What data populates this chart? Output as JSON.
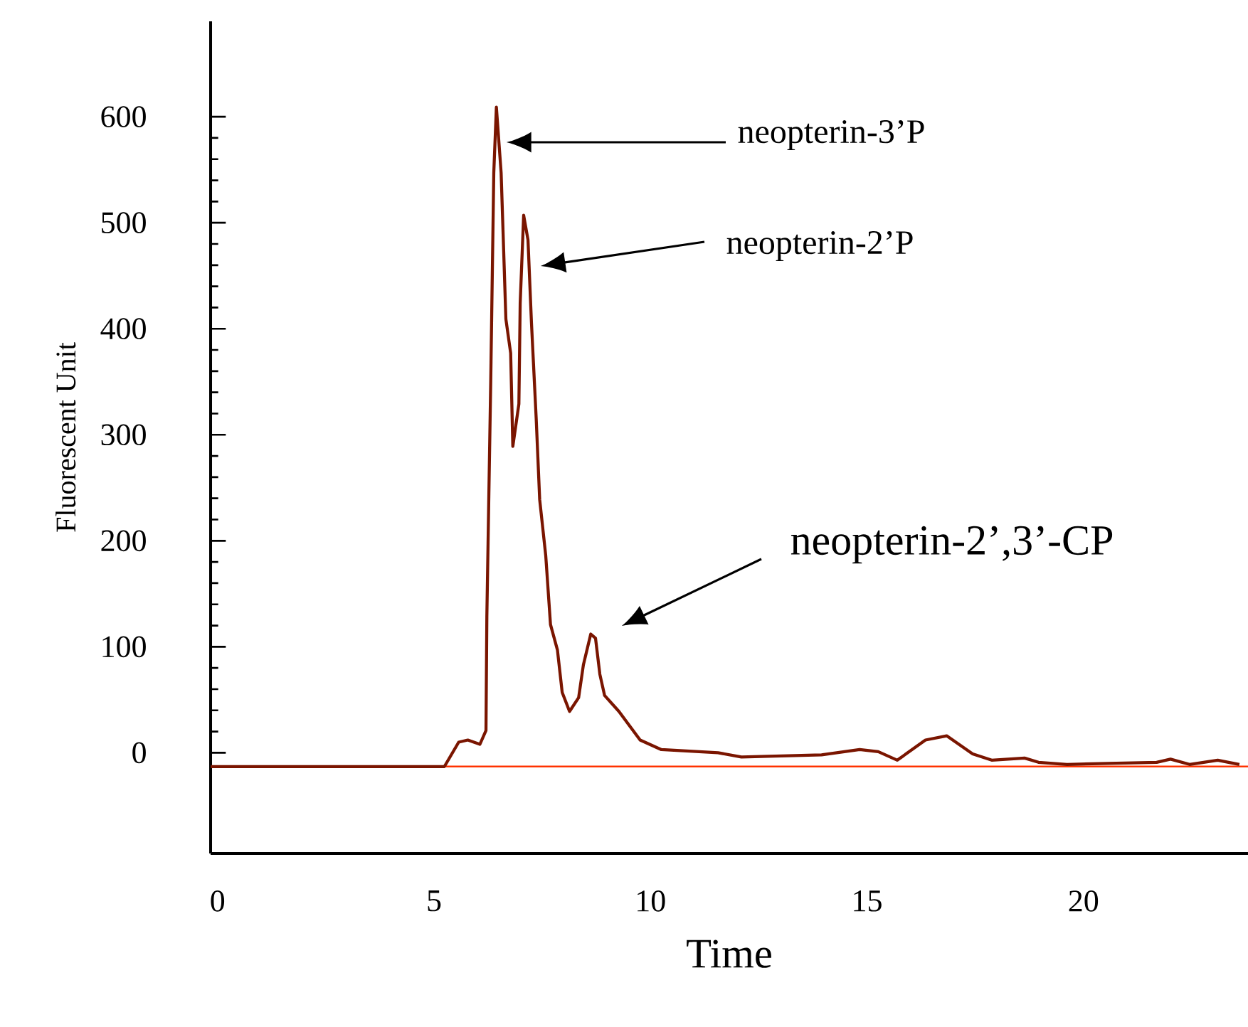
{
  "chart_data": {
    "type": "line",
    "xlabel": "Time",
    "ylabel": "Fluorescent Unit",
    "x": [
      -0.16,
      5.24,
      5.57,
      5.78,
      6.06,
      6.2,
      6.22,
      6.31,
      6.38,
      6.44,
      6.55,
      6.66,
      6.77,
      6.82,
      6.96,
      6.99,
      7.07,
      7.17,
      7.25,
      7.36,
      7.44,
      7.58,
      7.69,
      7.85,
      7.96,
      8.13,
      8.34,
      8.45,
      8.62,
      8.73,
      8.83,
      8.94,
      9.27,
      9.76,
      10.25,
      11.56,
      12.1,
      13.95,
      14.83,
      15.26,
      15.7,
      16.35,
      16.84,
      17.44,
      17.88,
      18.64,
      18.96,
      19.62,
      21.69,
      22.01,
      22.45,
      23.1,
      23.6
    ],
    "series": [
      {
        "color": "#7a1500",
        "values": [
          -13,
          -13,
          10,
          12,
          8,
          21,
          128,
          351,
          547,
          609,
          547,
          409,
          377,
          289,
          329,
          424,
          507,
          484,
          406,
          315,
          239,
          186,
          121,
          97,
          57,
          39,
          52,
          83,
          112,
          108,
          74,
          54,
          39,
          12,
          3,
          0,
          -4,
          -2,
          3,
          1,
          -7,
          12,
          16,
          -1,
          -7,
          -5,
          -9,
          -11,
          -9,
          -6,
          -11,
          -7,
          -11
        ]
      }
    ],
    "xlim": [
      -0.16,
      23.8
    ],
    "ylim": [
      -95,
      690
    ],
    "xticks": [
      0,
      5,
      10,
      15,
      20
    ],
    "yticks": [
      0,
      100,
      200,
      300,
      400,
      500,
      600
    ],
    "ref_lines": [
      {
        "axis": "y",
        "value": -13,
        "color": "#ff3300"
      }
    ],
    "annotations": [
      "neopterin-3’P",
      "neopterin-2’P",
      "neopterin-2’,3’-CP"
    ]
  }
}
